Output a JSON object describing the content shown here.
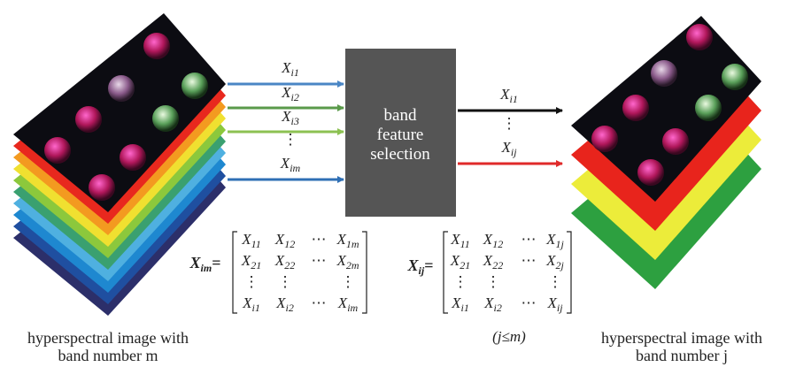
{
  "left_stack": {
    "caption": [
      "hyperspectral image with",
      "band number m"
    ]
  },
  "inputs": [
    {
      "symbol": "X",
      "subscript": "i1"
    },
    {
      "symbol": "X",
      "subscript": "i2"
    },
    {
      "symbol": "X",
      "subscript": "i3"
    },
    "⋮",
    {
      "symbol": "X",
      "subscript": "im"
    }
  ],
  "selector": {
    "label": [
      "band",
      "feature",
      "selection"
    ]
  },
  "outputs": [
    {
      "symbol": "X",
      "subscript": "i1"
    },
    "⋮",
    {
      "symbol": "X",
      "subscript": "ij"
    }
  ],
  "matrices": [
    {
      "name": {
        "symbol": "X",
        "subscript": "im"
      },
      "equals": "=",
      "rows": [
        [
          {
            "symbol": "X",
            "subscript": "11"
          },
          {
            "symbol": "X",
            "subscript": "12"
          },
          "⋯",
          {
            "symbol": "X",
            "subscript": "1m"
          }
        ],
        [
          {
            "symbol": "X",
            "subscript": "21"
          },
          {
            "symbol": "X",
            "subscript": "22"
          },
          "⋯",
          {
            "symbol": "X",
            "subscript": "2m"
          }
        ],
        [
          "⋮",
          "⋮",
          null,
          "⋮"
        ],
        [
          {
            "symbol": "X",
            "subscript": "i1"
          },
          {
            "symbol": "X",
            "subscript": "i2"
          },
          "⋯",
          {
            "symbol": "X",
            "subscript": "im"
          }
        ]
      ]
    },
    {
      "name": {
        "symbol": "X",
        "subscript": "ij"
      },
      "equals": "=",
      "rows": [
        [
          {
            "symbol": "X",
            "subscript": "11"
          },
          {
            "symbol": "X",
            "subscript": "12"
          },
          "⋯",
          {
            "symbol": "X",
            "subscript": "1j"
          }
        ],
        [
          {
            "symbol": "X",
            "subscript": "21"
          },
          {
            "symbol": "X",
            "subscript": "22"
          },
          "⋯",
          {
            "symbol": "X",
            "subscript": "2j"
          }
        ],
        [
          "⋮",
          "⋮",
          null,
          "⋮"
        ],
        [
          {
            "symbol": "X",
            "subscript": "i1"
          },
          {
            "symbol": "X",
            "subscript": "i2"
          },
          "⋯",
          {
            "symbol": "X",
            "subscript": "ij"
          }
        ]
      ]
    }
  ],
  "constraint": "(j≤m)",
  "right_stack": {
    "caption": [
      "hyperspectral image with",
      "band number j"
    ]
  }
}
